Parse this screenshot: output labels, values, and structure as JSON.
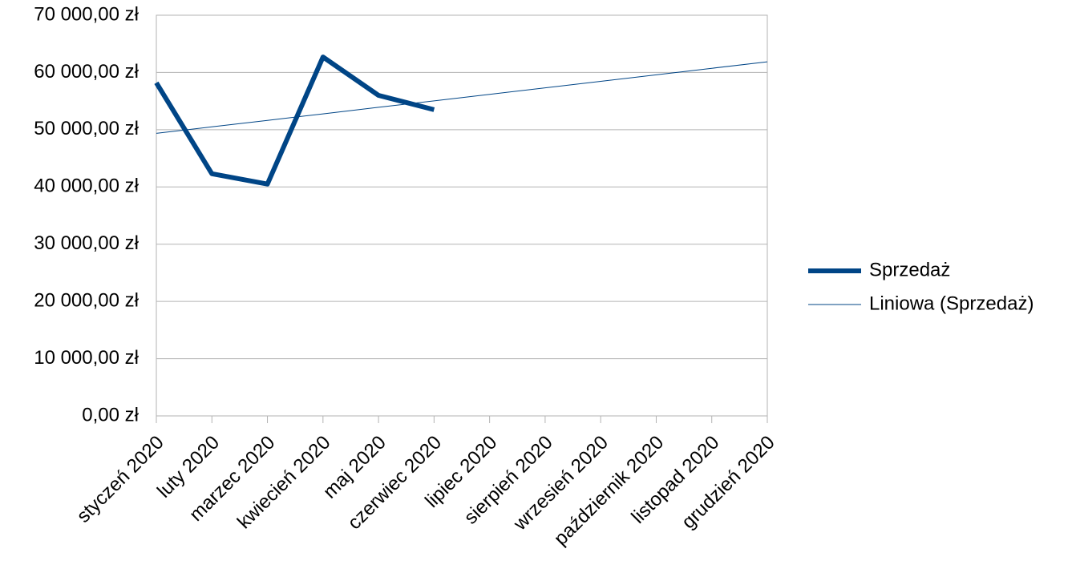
{
  "chart_data": {
    "type": "line",
    "categories": [
      "styczeń 2020",
      "luty 2020",
      "marzec 2020",
      "kwiecień 2020",
      "maj 2020",
      "czerwiec 2020",
      "lipiec 2020",
      "sierpień 2020",
      "wrzesień 2020",
      "październik 2020",
      "listopad 2020",
      "grudzień 2020"
    ],
    "series": [
      {
        "name": "Sprzedaż",
        "color": "#004586",
        "values": [
          58200,
          42300,
          40500,
          62700,
          56000,
          53500,
          null,
          null,
          null,
          null,
          null,
          null
        ]
      },
      {
        "name": "Liniowa (Sprzedaż)",
        "color": "#004586",
        "values": [
          49360,
          50500,
          51630,
          52770,
          53910,
          55040,
          56180,
          57320,
          58450,
          59590,
          60730,
          61870
        ]
      }
    ],
    "ylim": [
      0,
      70000
    ],
    "yticks": [
      {
        "value": 0,
        "label": "0,00 zł"
      },
      {
        "value": 10000,
        "label": "10 000,00 zł"
      },
      {
        "value": 20000,
        "label": "20 000,00 zł"
      },
      {
        "value": 30000,
        "label": "30 000,00 zł"
      },
      {
        "value": 40000,
        "label": "40 000,00 zł"
      },
      {
        "value": 50000,
        "label": "50 000,00 zł"
      },
      {
        "value": 60000,
        "label": "60 000,00 zł"
      },
      {
        "value": 70000,
        "label": "70 000,00 zł"
      }
    ],
    "grid": true,
    "legend": "right"
  }
}
